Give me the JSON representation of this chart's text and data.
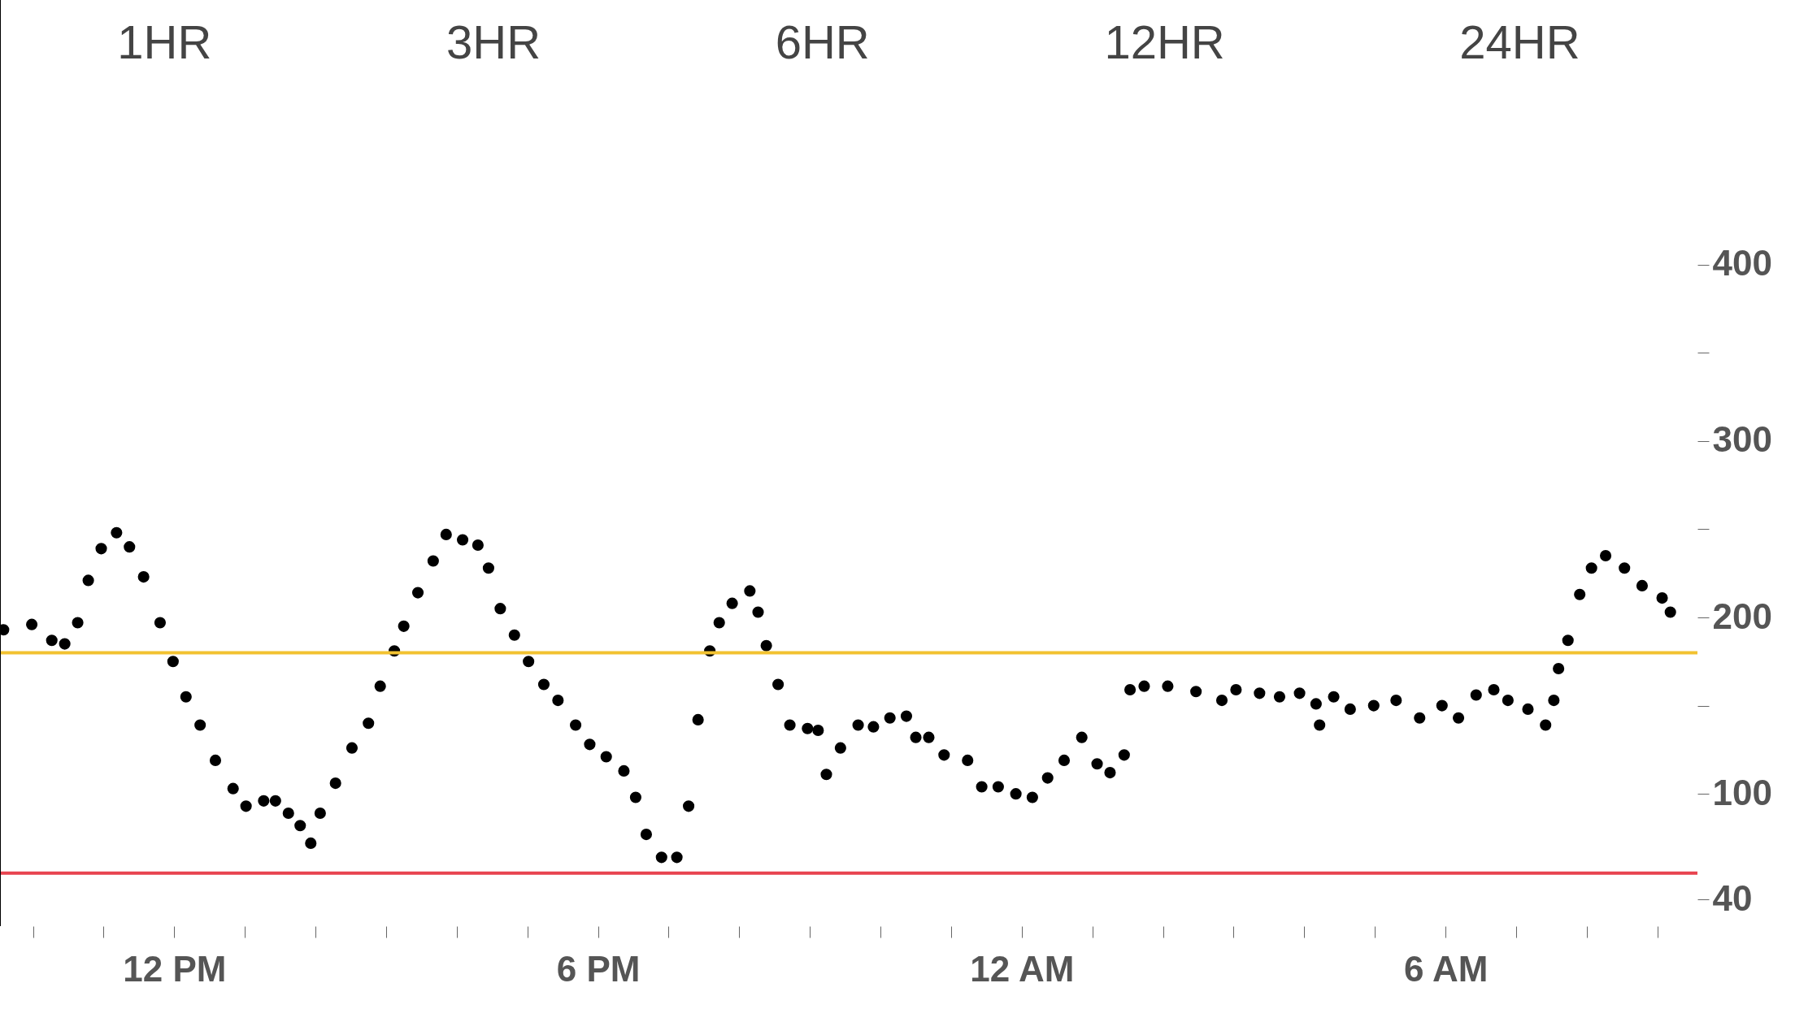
{
  "chart_data": {
    "type": "scatter",
    "annotations": [
      "1HR",
      "3HR",
      "6HR",
      "12HR",
      "24HR"
    ],
    "x": [
      "--01-01T09:35",
      "--01-01T09:59",
      "--01-01T10:16",
      "--01-01T10:27",
      "--01-01T10:38",
      "--01-01T10:47",
      "--01-01T10:58",
      "--01-01T11:11",
      "--01-01T11:22",
      "--01-01T11:34",
      "--01-01T11:48",
      "--01-01T11:59",
      "--01-01T12:10",
      "--01-01T12:22",
      "--01-01T12:35",
      "--01-01T12:50",
      "--01-01T13:01",
      "--01-01T13:16",
      "--01-01T13:26",
      "--01-01T13:37",
      "--01-01T13:47",
      "--01-01T13:56",
      "--01-01T14:04",
      "--01-01T14:17",
      "--01-01T14:31",
      "--01-01T14:45",
      "--01-01T14:55",
      "--01-01T15:07",
      "--01-01T15:15",
      "--01-01T15:27",
      "--01-01T15:40",
      "--01-01T15:51",
      "--01-01T16:05",
      "--01-01T16:18",
      "--01-01T16:27",
      "--01-01T16:37",
      "--01-01T16:49",
      "--01-01T17:01",
      "--01-01T17:14",
      "--01-01T17:26",
      "--01-01T17:41",
      "--01-01T17:53",
      "--01-01T18:07",
      "--01-01T18:22",
      "--01-01T18:32",
      "--01-01T18:41",
      "--01-01T18:54",
      "--01-01T19:07",
      "--01-01T19:17",
      "--01-01T19:25",
      "--01-01T19:35",
      "--01-01T19:43",
      "--01-01T19:54",
      "--01-01T20:09",
      "--01-01T20:16",
      "--01-01T20:23",
      "--01-01T20:33",
      "--01-01T20:43",
      "--01-01T20:58",
      "--01-01T21:07",
      "--01-01T21:14",
      "--01-01T21:26",
      "--01-01T21:41",
      "--01-01T21:54",
      "--01-01T22:08",
      "--01-01T22:22",
      "--01-01T22:30",
      "--01-01T22:41",
      "--01-01T22:54",
      "--01-01T23:14",
      "--01-01T23:26",
      "--01-01T23:40",
      "--01-01T23:55",
      "--01-02T00:09",
      "--01-02T00:22",
      "--01-02T00:36",
      "--01-02T00:51",
      "--01-02T01:04",
      "--01-02T01:15",
      "--01-02T01:27",
      "--01-02T01:32",
      "--01-02T01:44",
      "--01-02T02:04",
      "--01-02T02:28",
      "--01-02T02:50",
      "--01-02T03:02",
      "--01-02T03:22",
      "--01-02T03:39",
      "--01-02T03:56",
      "--01-02T04:10",
      "--01-02T04:13",
      "--01-02T04:25",
      "--01-02T04:39",
      "--01-02T04:59",
      "--01-02T05:18",
      "--01-02T05:38",
      "--01-02T05:57",
      "--01-02T06:11",
      "--01-02T06:26",
      "--01-02T06:41",
      "--01-02T06:53",
      "--01-02T07:10",
      "--01-02T07:25",
      "--01-02T07:32",
      "--01-02T07:36",
      "--01-02T07:44",
      "--01-02T07:54",
      "--01-02T08:04",
      "--01-02T08:16",
      "--01-02T08:32",
      "--01-02T08:47",
      "--01-02T09:04",
      "--01-02T09:11"
    ],
    "series": [
      {
        "color": "#000000",
        "values": [
          193,
          196,
          187,
          185,
          197,
          221,
          239,
          248,
          240,
          223,
          197,
          175,
          155,
          139,
          119,
          103,
          93,
          96,
          96,
          89,
          82,
          72,
          89,
          106,
          126,
          140,
          161,
          181,
          195,
          214,
          232,
          247,
          244,
          241,
          228,
          205,
          190,
          175,
          162,
          153,
          139,
          128,
          121,
          113,
          98,
          77,
          64,
          64,
          93,
          142,
          181,
          197,
          208,
          215,
          203,
          184,
          162,
          139,
          137,
          136,
          111,
          126,
          139,
          138,
          143,
          144,
          132,
          132,
          122,
          119,
          104,
          104,
          100,
          98,
          109,
          119,
          132,
          117,
          112,
          122,
          159,
          161,
          161,
          158,
          153,
          159,
          157,
          155,
          157,
          151,
          139,
          155,
          148,
          150,
          153,
          143,
          150,
          143,
          156,
          159,
          153,
          148,
          139,
          153,
          171,
          187,
          213,
          228,
          235,
          228,
          218,
          211,
          203
        ]
      }
    ],
    "xlim": [
      "--01-01T09:32",
      "--01-02T09:34"
    ],
    "xticks": [
      {
        "value": "--01-01T10:00",
        "label": null
      },
      {
        "value": "--01-01T11:00",
        "label": null
      },
      {
        "value": "--01-01T12:00",
        "label": "12 PM"
      },
      {
        "value": "--01-01T13:00",
        "label": null
      },
      {
        "value": "--01-01T14:00",
        "label": null
      },
      {
        "value": "--01-01T15:00",
        "label": null
      },
      {
        "value": "--01-01T16:00",
        "label": null
      },
      {
        "value": "--01-01T17:00",
        "label": null
      },
      {
        "value": "--01-01T18:00",
        "label": "6 PM"
      },
      {
        "value": "--01-01T19:00",
        "label": null
      },
      {
        "value": "--01-01T20:00",
        "label": null
      },
      {
        "value": "--01-01T21:00",
        "label": null
      },
      {
        "value": "--01-01T22:00",
        "label": null
      },
      {
        "value": "--01-01T23:00",
        "label": null
      },
      {
        "value": "--01-02T00:00",
        "label": "12 AM"
      },
      {
        "value": "--01-02T01:00",
        "label": null
      },
      {
        "value": "--01-02T02:00",
        "label": null
      },
      {
        "value": "--01-02T03:00",
        "label": null
      },
      {
        "value": "--01-02T04:00",
        "label": null
      },
      {
        "value": "--01-02T05:00",
        "label": null
      },
      {
        "value": "--01-02T06:00",
        "label": "6 AM"
      },
      {
        "value": "--01-02T07:00",
        "label": null
      },
      {
        "value": "--01-02T08:00",
        "label": null
      },
      {
        "value": "--01-02T09:00",
        "label": null
      }
    ],
    "ylim": [
      25,
      550
    ],
    "yticks": [
      40,
      100,
      {
        "value": 150,
        "label": null
      },
      200,
      {
        "value": 250,
        "label": null
      },
      300,
      {
        "value": 350,
        "label": null
      },
      400
    ],
    "ref_lines": [
      {
        "axis": "y",
        "value": 180,
        "color": "#f2c230"
      },
      {
        "axis": "y",
        "value": 55,
        "color": "#e8434f"
      }
    ],
    "marker": "circle",
    "grid": false
  }
}
